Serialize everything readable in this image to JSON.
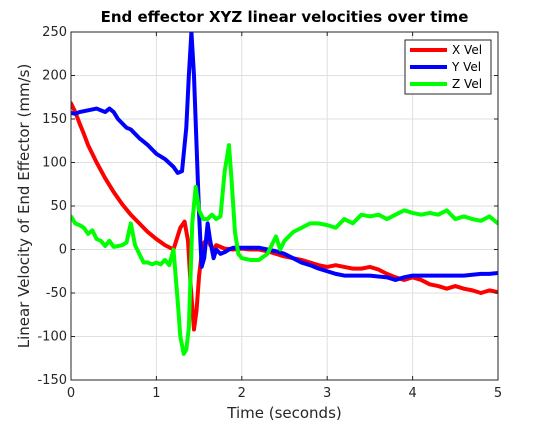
{
  "chart_data": {
    "type": "line",
    "title": "End effector XYZ linear velocities over time",
    "xlabel": "Time (seconds)",
    "ylabel": "Linear Velocity of End Effector (mm/s)",
    "xlim": [
      0,
      5
    ],
    "ylim": [
      -150,
      250
    ],
    "xticks": [
      0,
      1,
      2,
      3,
      4,
      5
    ],
    "xtick_labels": [
      "0",
      "1",
      "2",
      "3",
      "4",
      "5"
    ],
    "yticks": [
      -150,
      -100,
      -50,
      0,
      50,
      100,
      150,
      200,
      250
    ],
    "ytick_labels": [
      "-150",
      "-100",
      "-50",
      "0",
      "50",
      "100",
      "150",
      "200",
      "250"
    ],
    "grid": true,
    "legend_position": "top-right",
    "series": [
      {
        "name": "X Vel",
        "color": "#ff0000",
        "x": [
          0,
          0.05,
          0.1,
          0.15,
          0.2,
          0.3,
          0.4,
          0.5,
          0.6,
          0.7,
          0.8,
          0.9,
          1.0,
          1.1,
          1.2,
          1.28,
          1.33,
          1.37,
          1.4,
          1.44,
          1.47,
          1.5,
          1.53,
          1.56,
          1.6,
          1.63,
          1.67,
          1.7,
          1.75,
          1.8,
          1.9,
          2.0,
          2.1,
          2.2,
          2.3,
          2.4,
          2.5,
          2.6,
          2.7,
          2.8,
          2.9,
          3.0,
          3.1,
          3.2,
          3.3,
          3.4,
          3.5,
          3.6,
          3.7,
          3.8,
          3.9,
          4.0,
          4.1,
          4.2,
          4.3,
          4.4,
          4.5,
          4.6,
          4.7,
          4.8,
          4.9,
          5.0
        ],
        "values": [
          168,
          158,
          145,
          133,
          120,
          100,
          82,
          66,
          52,
          40,
          30,
          20,
          12,
          5,
          0,
          25,
          32,
          10,
          -40,
          -92,
          -70,
          -30,
          -5,
          8,
          12,
          5,
          0,
          5,
          3,
          1,
          0,
          1,
          0,
          0,
          -2,
          -5,
          -8,
          -10,
          -12,
          -15,
          -18,
          -20,
          -18,
          -20,
          -22,
          -22,
          -20,
          -23,
          -28,
          -32,
          -35,
          -32,
          -35,
          -40,
          -42,
          -45,
          -42,
          -45,
          -47,
          -50,
          -47,
          -49
        ]
      },
      {
        "name": "Y Vel",
        "color": "#0000ff",
        "x": [
          0,
          0.05,
          0.1,
          0.2,
          0.3,
          0.4,
          0.45,
          0.5,
          0.55,
          0.6,
          0.65,
          0.7,
          0.8,
          0.9,
          1.0,
          1.1,
          1.2,
          1.25,
          1.3,
          1.35,
          1.38,
          1.41,
          1.44,
          1.47,
          1.5,
          1.53,
          1.56,
          1.6,
          1.63,
          1.67,
          1.7,
          1.75,
          1.8,
          1.85,
          1.9,
          2.0,
          2.1,
          2.2,
          2.3,
          2.4,
          2.5,
          2.6,
          2.7,
          2.8,
          2.9,
          3.0,
          3.1,
          3.2,
          3.3,
          3.5,
          3.7,
          3.8,
          3.9,
          4.0,
          4.2,
          4.4,
          4.6,
          4.8,
          4.9,
          5.0
        ],
        "values": [
          157,
          156,
          158,
          160,
          162,
          158,
          162,
          158,
          150,
          145,
          140,
          138,
          128,
          120,
          110,
          104,
          95,
          88,
          90,
          140,
          200,
          250,
          200,
          120,
          40,
          -20,
          -10,
          30,
          10,
          -10,
          0,
          -5,
          -3,
          0,
          2,
          2,
          2,
          2,
          0,
          -2,
          -5,
          -10,
          -15,
          -18,
          -22,
          -25,
          -28,
          -30,
          -30,
          -30,
          -32,
          -35,
          -32,
          -30,
          -30,
          -30,
          -30,
          -28,
          -28,
          -27
        ]
      },
      {
        "name": "Z Vel",
        "color": "#00ff00",
        "x": [
          0,
          0.05,
          0.1,
          0.15,
          0.2,
          0.25,
          0.3,
          0.35,
          0.4,
          0.45,
          0.5,
          0.55,
          0.6,
          0.65,
          0.7,
          0.75,
          0.8,
          0.85,
          0.9,
          0.95,
          1.0,
          1.05,
          1.1,
          1.15,
          1.2,
          1.25,
          1.28,
          1.32,
          1.35,
          1.38,
          1.42,
          1.46,
          1.5,
          1.55,
          1.6,
          1.65,
          1.7,
          1.75,
          1.8,
          1.85,
          1.88,
          1.92,
          1.96,
          2.0,
          2.1,
          2.2,
          2.3,
          2.4,
          2.45,
          2.5,
          2.6,
          2.7,
          2.8,
          2.9,
          3.0,
          3.1,
          3.2,
          3.3,
          3.4,
          3.5,
          3.6,
          3.7,
          3.8,
          3.9,
          4.0,
          4.1,
          4.2,
          4.3,
          4.4,
          4.5,
          4.6,
          4.7,
          4.8,
          4.9,
          5.0
        ],
        "values": [
          38,
          30,
          28,
          25,
          18,
          22,
          12,
          10,
          4,
          10,
          3,
          4,
          5,
          8,
          30,
          5,
          -5,
          -15,
          -15,
          -17,
          -15,
          -17,
          -12,
          -18,
          0,
          -60,
          -100,
          -120,
          -115,
          -90,
          30,
          72,
          45,
          35,
          35,
          40,
          35,
          38,
          90,
          120,
          80,
          20,
          -5,
          -10,
          -12,
          -12,
          -5,
          15,
          0,
          10,
          20,
          25,
          30,
          30,
          28,
          25,
          35,
          30,
          40,
          38,
          40,
          35,
          40,
          45,
          42,
          40,
          42,
          40,
          45,
          35,
          38,
          35,
          33,
          38,
          30
        ]
      }
    ]
  }
}
